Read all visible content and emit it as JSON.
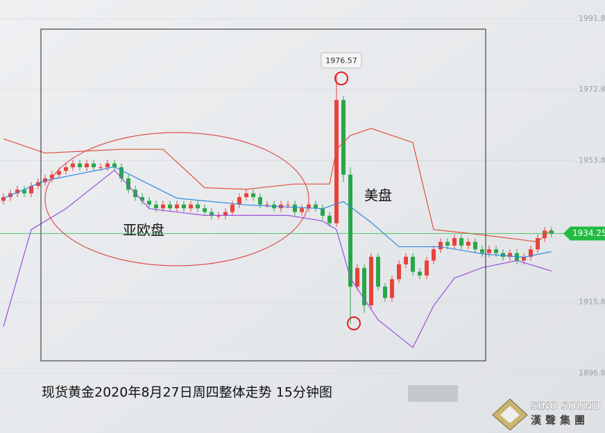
{
  "chart_data": {
    "type": "candlestick",
    "title": "现货黄金2020年8月27日周四整体走势 15分钟图",
    "annotations": {
      "peak": "1976.57",
      "asia_europe": "亚欧盘",
      "us": "美盘"
    },
    "brand": {
      "latin": "SINO SOUND",
      "chinese": "漢聲集團"
    },
    "current_price": {
      "value": 1934.25,
      "color": "#22bb44"
    },
    "ylim": [
      1880.8,
      1996.8
    ],
    "yticks": [
      1991.8,
      1972.8,
      1953.8,
      1915.8,
      1896.8
    ],
    "up_color": "#e8423a",
    "down_color": "#2aa64a",
    "open": [
      1943,
      1944,
      1945,
      1946,
      1945,
      1947,
      1948,
      1949,
      1950,
      1951,
      1952,
      1953,
      1952,
      1953,
      1952,
      1952,
      1953,
      1952,
      1949,
      1946,
      1944,
      1943,
      1942,
      1941,
      1942,
      1941,
      1942,
      1941,
      1942,
      1941,
      1940,
      1939,
      1939,
      1940,
      1942,
      1944,
      1945,
      1944,
      1942,
      1942,
      1941,
      1942,
      1942,
      1940,
      1941,
      1942,
      1941,
      1939,
      1937,
      1970,
      1950,
      1920,
      1925,
      1915,
      1928,
      1920,
      1917,
      1922,
      1926,
      1928,
      1924,
      1923,
      1927,
      1930,
      1932,
      1931,
      1933,
      1931,
      1932,
      1930,
      1929,
      1930,
      1929,
      1928,
      1929,
      1927,
      1928,
      1930,
      1933,
      1935
    ],
    "high": [
      1945,
      1946,
      1947,
      1947,
      1948,
      1949,
      1950,
      1951,
      1952,
      1953,
      1954,
      1954,
      1954,
      1954,
      1953,
      1954,
      1954,
      1953,
      1950,
      1947,
      1945,
      1944,
      1943,
      1943,
      1943,
      1943,
      1943,
      1943,
      1943,
      1942,
      1941,
      1940,
      1941,
      1943,
      1945,
      1946,
      1946,
      1945,
      1943,
      1943,
      1943,
      1943,
      1943,
      1942,
      1943,
      1943,
      1942,
      1940,
      1976.57,
      1971,
      1952,
      1926,
      1926,
      1929,
      1929,
      1921,
      1923,
      1927,
      1929,
      1929,
      1925,
      1928,
      1931,
      1933,
      1933,
      1934,
      1934,
      1933,
      1933,
      1931,
      1931,
      1931,
      1930,
      1930,
      1930,
      1929,
      1931,
      1934,
      1936,
      1936
    ],
    "low": [
      1942,
      1943,
      1944,
      1944,
      1944,
      1946,
      1947,
      1948,
      1949,
      1950,
      1951,
      1951,
      1951,
      1951,
      1951,
      1951,
      1951,
      1948,
      1945,
      1943,
      1942,
      1941,
      1940,
      1940,
      1940,
      1940,
      1940,
      1940,
      1940,
      1939,
      1938,
      1938,
      1938,
      1939,
      1941,
      1943,
      1943,
      1941,
      1941,
      1940,
      1940,
      1941,
      1939,
      1939,
      1940,
      1940,
      1938,
      1936,
      1936,
      1948,
      1910,
      1919,
      1913,
      1914,
      1919,
      1916,
      1916,
      1921,
      1925,
      1923,
      1922,
      1922,
      1926,
      1929,
      1930,
      1930,
      1930,
      1930,
      1929,
      1928,
      1928,
      1928,
      1927,
      1927,
      1926,
      1926,
      1927,
      1929,
      1932,
      1933.25
    ],
    "close": [
      1944,
      1945,
      1946,
      1945,
      1947,
      1948,
      1949,
      1950,
      1951,
      1952,
      1953,
      1952,
      1953,
      1952,
      1952,
      1953,
      1952,
      1949,
      1946,
      1944,
      1943,
      1942,
      1941,
      1942,
      1941,
      1942,
      1941,
      1942,
      1941,
      1940,
      1939,
      1939,
      1940,
      1942,
      1944,
      1945,
      1944,
      1942,
      1942,
      1941,
      1942,
      1942,
      1940,
      1941,
      1942,
      1941,
      1939,
      1937,
      1970,
      1950,
      1920,
      1925,
      1915,
      1928,
      1920,
      1917,
      1922,
      1926,
      1928,
      1924,
      1923,
      1927,
      1930,
      1932,
      1931,
      1933,
      1931,
      1932,
      1930,
      1929,
      1930,
      1929,
      1928,
      1929,
      1927,
      1928,
      1930,
      1933,
      1935,
      1934.25
    ],
    "lines": [
      {
        "color": "#e0503a",
        "x": [
          0,
          6,
          17,
          23,
          29,
          35,
          42,
          47,
          48,
          50,
          53,
          59,
          62,
          69,
          77,
          79
        ],
        "values": [
          1959.6,
          1955.8,
          1956.8,
          1956.8,
          1946.5,
          1946.1,
          1947.5,
          1947.5,
          1956.8,
          1960.5,
          1962.4,
          1958.6,
          1935.3,
          1933.9,
          1932,
          1935.3
        ]
      },
      {
        "color": "#9b4fe0",
        "x": [
          0,
          4,
          9,
          16,
          21,
          29,
          41,
          46,
          48,
          50,
          54,
          59,
          62,
          65,
          69,
          74,
          79
        ],
        "values": [
          1909.3,
          1935.3,
          1940.9,
          1951.2,
          1940.9,
          1939.1,
          1939.1,
          1937.6,
          1935.3,
          1922.3,
          1911.1,
          1903.7,
          1914.9,
          1922.3,
          1925.1,
          1927,
          1924.2
        ]
      },
      {
        "color": "#2f86e6",
        "x": [
          0,
          6,
          16,
          25,
          35,
          46,
          49,
          53,
          57,
          63,
          69,
          75,
          79
        ],
        "values": [
          1943.7,
          1948.4,
          1952.1,
          1943.7,
          1941.9,
          1940.9,
          1942.8,
          1937.2,
          1930.7,
          1930.7,
          1928.8,
          1927.9,
          1929.4
        ]
      }
    ]
  }
}
